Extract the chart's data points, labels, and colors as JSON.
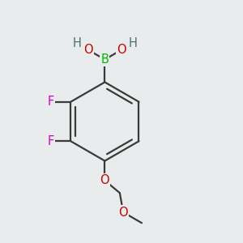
{
  "background_color": "#e8ecec",
  "bond_color": "#3a3a3a",
  "bond_width": 1.6,
  "atom_colors": {
    "B": "#00bb00",
    "O": "#cc0000",
    "H": "#507070",
    "F": "#cc00cc",
    "C": "#3a3a3a"
  },
  "fontsize": 10.5
}
